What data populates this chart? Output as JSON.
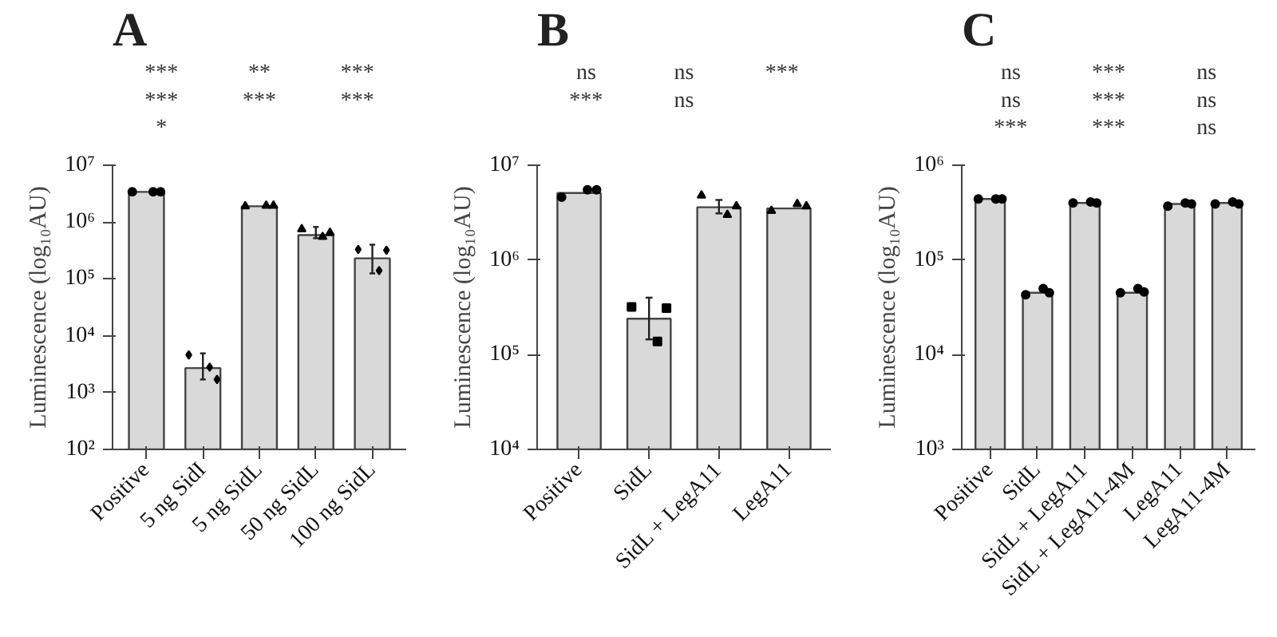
{
  "chart_data": [
    {
      "type": "bar",
      "title": "A",
      "ylabel": "Luminescence (log₁₀AU)",
      "categories": [
        "Positive",
        "5 ng SidI",
        "5 ng SidL",
        "50 ng SidL",
        "100 ng SidL"
      ],
      "log": true,
      "ylim": [
        100,
        10000000
      ],
      "yticks": [
        {
          "value": 100,
          "label": "10²"
        },
        {
          "value": 1000,
          "label": "10³"
        },
        {
          "value": 10000,
          "label": "10⁴"
        },
        {
          "value": 100000,
          "label": "10⁵"
        },
        {
          "value": 1000000,
          "label": "10⁶"
        },
        {
          "value": 10000000,
          "label": "10⁷"
        }
      ],
      "series": [
        {
          "type": "bar",
          "color": "#d9d9d9",
          "values": [
            3400000,
            2700,
            1900000,
            590000,
            230000
          ],
          "errors": [
            null,
            [
              1700,
              4900
            ],
            null,
            [
              520000,
              820000
            ],
            [
              125000,
              400000
            ]
          ]
        },
        {
          "type": "scatter",
          "color": "#000000",
          "marker": "circle",
          "x": [
            "Positive",
            "Positive",
            "Positive"
          ],
          "values": [
            3400000,
            3400000,
            3400000
          ]
        },
        {
          "type": "scatter",
          "color": "#000000",
          "marker": "diamond",
          "x": [
            "5 ng SidI",
            "5 ng SidI",
            "5 ng SidI"
          ],
          "values": [
            4600.0,
            2800,
            1700
          ]
        },
        {
          "type": "scatter",
          "color": "#000000",
          "marker": "triangle",
          "x": [
            "5 ng SidL",
            "5 ng SidL",
            "5 ng SidL"
          ],
          "values": [
            1900000,
            1950000,
            1950000
          ]
        },
        {
          "type": "scatter",
          "color": "#000000",
          "marker": "triangle",
          "x": [
            "50 ng SidL",
            "50 ng SidL",
            "50 ng SidL"
          ],
          "values": [
            750000,
            550000,
            650000
          ]
        },
        {
          "type": "scatter",
          "color": "#000000",
          "marker": "diamond",
          "x": [
            "100 ng SidL",
            "100 ng SidL",
            "100 ng SidL"
          ],
          "values": [
            330000,
            140000,
            320000
          ]
        }
      ],
      "annotations": [
        "***",
        "**",
        "***",
        "***",
        "***",
        "***",
        "*"
      ]
    },
    {
      "type": "bar",
      "title": "B",
      "ylabel": "Luminescence (log₁₀AU)",
      "categories": [
        "Positive",
        "SidL",
        "SidL + LegA11",
        "LegA11"
      ],
      "log": true,
      "ylim": [
        10000,
        10000000
      ],
      "yticks": [
        {
          "value": 10000,
          "label": "10⁴"
        },
        {
          "value": 100000,
          "label": "10⁵"
        },
        {
          "value": 1000000,
          "label": "10⁶"
        },
        {
          "value": 10000000,
          "label": "10⁷"
        }
      ],
      "series": [
        {
          "type": "bar",
          "color": "#d9d9d9",
          "values": [
            5100000,
            240000,
            3600000,
            3500000
          ],
          "errors": [
            null,
            [
              145000,
              400000
            ],
            [
              3100000,
              4300000
            ],
            null
          ]
        },
        {
          "type": "scatter",
          "color": "#000000",
          "marker": "circle",
          "x": [
            "Positive",
            "Positive",
            "Positive"
          ],
          "values": [
            4600000,
            5500000,
            5500000
          ]
        },
        {
          "type": "scatter",
          "color": "#000000",
          "marker": "square",
          "x": [
            "SidL",
            "SidL",
            "SidL"
          ],
          "values": [
            320000,
            138000,
            310000
          ]
        },
        {
          "type": "scatter",
          "color": "#000000",
          "marker": "triangle",
          "x": [
            "SidL + LegA11",
            "SidL + LegA11",
            "SidL + LegA11"
          ],
          "values": [
            4800000,
            3000000,
            3700000
          ]
        },
        {
          "type": "scatter",
          "color": "#000000",
          "marker": "triangle",
          "x": [
            "LegA11",
            "LegA11",
            "LegA11"
          ],
          "values": [
            3300000,
            3900000,
            3700000
          ]
        }
      ],
      "annotations": [
        "ns",
        "ns",
        "***",
        "***",
        "ns"
      ]
    },
    {
      "type": "bar",
      "title": "C",
      "ylabel": "Luminescence (log₁₀AU)",
      "categories": [
        "Positive",
        "SidL",
        "SidL + LegA11",
        "SidL + LegA11-4M",
        "LegA11",
        "LegA11-4M"
      ],
      "log": true,
      "ylim": [
        1000,
        1000000
      ],
      "yticks": [
        {
          "value": 1000,
          "label": "10³"
        },
        {
          "value": 10000,
          "label": "10⁴"
        },
        {
          "value": 100000,
          "label": "10⁵"
        },
        {
          "value": 1000000,
          "label": "10⁶"
        }
      ],
      "series": [
        {
          "type": "bar",
          "color": "#d9d9d9",
          "values": [
            440000,
            45000,
            400000,
            45000,
            390000,
            400000
          ]
        },
        {
          "type": "scatter",
          "color": "#000000",
          "marker": "circle",
          "x": [
            "Positive",
            "Positive",
            "Positive"
          ],
          "values": [
            440000,
            440000,
            440000
          ]
        },
        {
          "type": "scatter",
          "color": "#000000",
          "marker": "circle",
          "x": [
            "SidL",
            "SidL",
            "SidL"
          ],
          "values": [
            43000,
            50000,
            45000
          ]
        },
        {
          "type": "scatter",
          "color": "#000000",
          "marker": "circle",
          "x": [
            "SidL + LegA11",
            "SidL + LegA11",
            "SidL + LegA11"
          ],
          "values": [
            400000,
            410000,
            400000
          ]
        },
        {
          "type": "scatter",
          "color": "#000000",
          "marker": "circle",
          "x": [
            "SidL + LegA11-4M",
            "SidL + LegA11-4M",
            "SidL + LegA11-4M"
          ],
          "values": [
            45000,
            50000,
            46000
          ]
        },
        {
          "type": "scatter",
          "color": "#000000",
          "marker": "circle",
          "x": [
            "LegA11",
            "LegA11",
            "LegA11"
          ],
          "values": [
            370000,
            400000,
            390000
          ]
        },
        {
          "type": "scatter",
          "color": "#000000",
          "marker": "circle",
          "x": [
            "LegA11-4M",
            "LegA11-4M",
            "LegA11-4M"
          ],
          "values": [
            390000,
            410000,
            390000
          ]
        }
      ],
      "annotations": [
        "ns",
        "***",
        "ns",
        "ns",
        "***",
        "ns",
        "***",
        "***",
        "ns"
      ]
    }
  ]
}
